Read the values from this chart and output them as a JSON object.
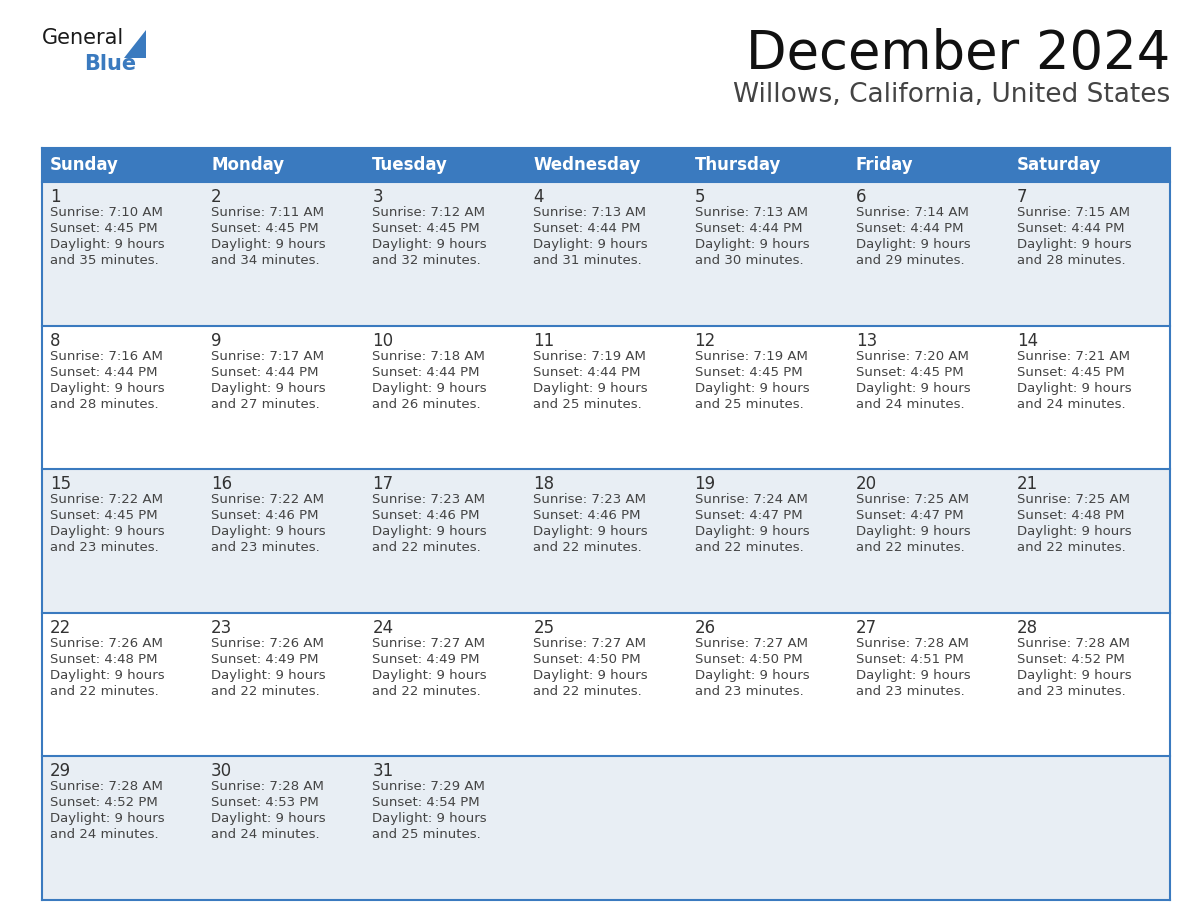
{
  "title": "December 2024",
  "subtitle": "Willows, California, United States",
  "header_bg": "#3a7abf",
  "header_text_color": "#ffffff",
  "cell_bg_light": "#e8eef4",
  "cell_bg_white": "#ffffff",
  "day_number_color": "#333333",
  "cell_text_color": "#444444",
  "grid_color": "#3a7abf",
  "days_of_week": [
    "Sunday",
    "Monday",
    "Tuesday",
    "Wednesday",
    "Thursday",
    "Friday",
    "Saturday"
  ],
  "weeks": [
    [
      {
        "day": 1,
        "sunrise": "7:10 AM",
        "sunset": "4:45 PM",
        "daylight_line1": "9 hours",
        "daylight_line2": "and 35 minutes."
      },
      {
        "day": 2,
        "sunrise": "7:11 AM",
        "sunset": "4:45 PM",
        "daylight_line1": "9 hours",
        "daylight_line2": "and 34 minutes."
      },
      {
        "day": 3,
        "sunrise": "7:12 AM",
        "sunset": "4:45 PM",
        "daylight_line1": "9 hours",
        "daylight_line2": "and 32 minutes."
      },
      {
        "day": 4,
        "sunrise": "7:13 AM",
        "sunset": "4:44 PM",
        "daylight_line1": "9 hours",
        "daylight_line2": "and 31 minutes."
      },
      {
        "day": 5,
        "sunrise": "7:13 AM",
        "sunset": "4:44 PM",
        "daylight_line1": "9 hours",
        "daylight_line2": "and 30 minutes."
      },
      {
        "day": 6,
        "sunrise": "7:14 AM",
        "sunset": "4:44 PM",
        "daylight_line1": "9 hours",
        "daylight_line2": "and 29 minutes."
      },
      {
        "day": 7,
        "sunrise": "7:15 AM",
        "sunset": "4:44 PM",
        "daylight_line1": "9 hours",
        "daylight_line2": "and 28 minutes."
      }
    ],
    [
      {
        "day": 8,
        "sunrise": "7:16 AM",
        "sunset": "4:44 PM",
        "daylight_line1": "9 hours",
        "daylight_line2": "and 28 minutes."
      },
      {
        "day": 9,
        "sunrise": "7:17 AM",
        "sunset": "4:44 PM",
        "daylight_line1": "9 hours",
        "daylight_line2": "and 27 minutes."
      },
      {
        "day": 10,
        "sunrise": "7:18 AM",
        "sunset": "4:44 PM",
        "daylight_line1": "9 hours",
        "daylight_line2": "and 26 minutes."
      },
      {
        "day": 11,
        "sunrise": "7:19 AM",
        "sunset": "4:44 PM",
        "daylight_line1": "9 hours",
        "daylight_line2": "and 25 minutes."
      },
      {
        "day": 12,
        "sunrise": "7:19 AM",
        "sunset": "4:45 PM",
        "daylight_line1": "9 hours",
        "daylight_line2": "and 25 minutes."
      },
      {
        "day": 13,
        "sunrise": "7:20 AM",
        "sunset": "4:45 PM",
        "daylight_line1": "9 hours",
        "daylight_line2": "and 24 minutes."
      },
      {
        "day": 14,
        "sunrise": "7:21 AM",
        "sunset": "4:45 PM",
        "daylight_line1": "9 hours",
        "daylight_line2": "and 24 minutes."
      }
    ],
    [
      {
        "day": 15,
        "sunrise": "7:22 AM",
        "sunset": "4:45 PM",
        "daylight_line1": "9 hours",
        "daylight_line2": "and 23 minutes."
      },
      {
        "day": 16,
        "sunrise": "7:22 AM",
        "sunset": "4:46 PM",
        "daylight_line1": "9 hours",
        "daylight_line2": "and 23 minutes."
      },
      {
        "day": 17,
        "sunrise": "7:23 AM",
        "sunset": "4:46 PM",
        "daylight_line1": "9 hours",
        "daylight_line2": "and 22 minutes."
      },
      {
        "day": 18,
        "sunrise": "7:23 AM",
        "sunset": "4:46 PM",
        "daylight_line1": "9 hours",
        "daylight_line2": "and 22 minutes."
      },
      {
        "day": 19,
        "sunrise": "7:24 AM",
        "sunset": "4:47 PM",
        "daylight_line1": "9 hours",
        "daylight_line2": "and 22 minutes."
      },
      {
        "day": 20,
        "sunrise": "7:25 AM",
        "sunset": "4:47 PM",
        "daylight_line1": "9 hours",
        "daylight_line2": "and 22 minutes."
      },
      {
        "day": 21,
        "sunrise": "7:25 AM",
        "sunset": "4:48 PM",
        "daylight_line1": "9 hours",
        "daylight_line2": "and 22 minutes."
      }
    ],
    [
      {
        "day": 22,
        "sunrise": "7:26 AM",
        "sunset": "4:48 PM",
        "daylight_line1": "9 hours",
        "daylight_line2": "and 22 minutes."
      },
      {
        "day": 23,
        "sunrise": "7:26 AM",
        "sunset": "4:49 PM",
        "daylight_line1": "9 hours",
        "daylight_line2": "and 22 minutes."
      },
      {
        "day": 24,
        "sunrise": "7:27 AM",
        "sunset": "4:49 PM",
        "daylight_line1": "9 hours",
        "daylight_line2": "and 22 minutes."
      },
      {
        "day": 25,
        "sunrise": "7:27 AM",
        "sunset": "4:50 PM",
        "daylight_line1": "9 hours",
        "daylight_line2": "and 22 minutes."
      },
      {
        "day": 26,
        "sunrise": "7:27 AM",
        "sunset": "4:50 PM",
        "daylight_line1": "9 hours",
        "daylight_line2": "and 23 minutes."
      },
      {
        "day": 27,
        "sunrise": "7:28 AM",
        "sunset": "4:51 PM",
        "daylight_line1": "9 hours",
        "daylight_line2": "and 23 minutes."
      },
      {
        "day": 28,
        "sunrise": "7:28 AM",
        "sunset": "4:52 PM",
        "daylight_line1": "9 hours",
        "daylight_line2": "and 23 minutes."
      }
    ],
    [
      {
        "day": 29,
        "sunrise": "7:28 AM",
        "sunset": "4:52 PM",
        "daylight_line1": "9 hours",
        "daylight_line2": "and 24 minutes."
      },
      {
        "day": 30,
        "sunrise": "7:28 AM",
        "sunset": "4:53 PM",
        "daylight_line1": "9 hours",
        "daylight_line2": "and 24 minutes."
      },
      {
        "day": 31,
        "sunrise": "7:29 AM",
        "sunset": "4:54 PM",
        "daylight_line1": "9 hours",
        "daylight_line2": "and 25 minutes."
      },
      null,
      null,
      null,
      null
    ]
  ],
  "logo_color_general": "#1a1a1a",
  "logo_color_blue": "#3a7abf",
  "title_fontsize": 38,
  "subtitle_fontsize": 19,
  "header_fontsize": 12,
  "day_num_fontsize": 12,
  "cell_text_fontsize": 9.5
}
